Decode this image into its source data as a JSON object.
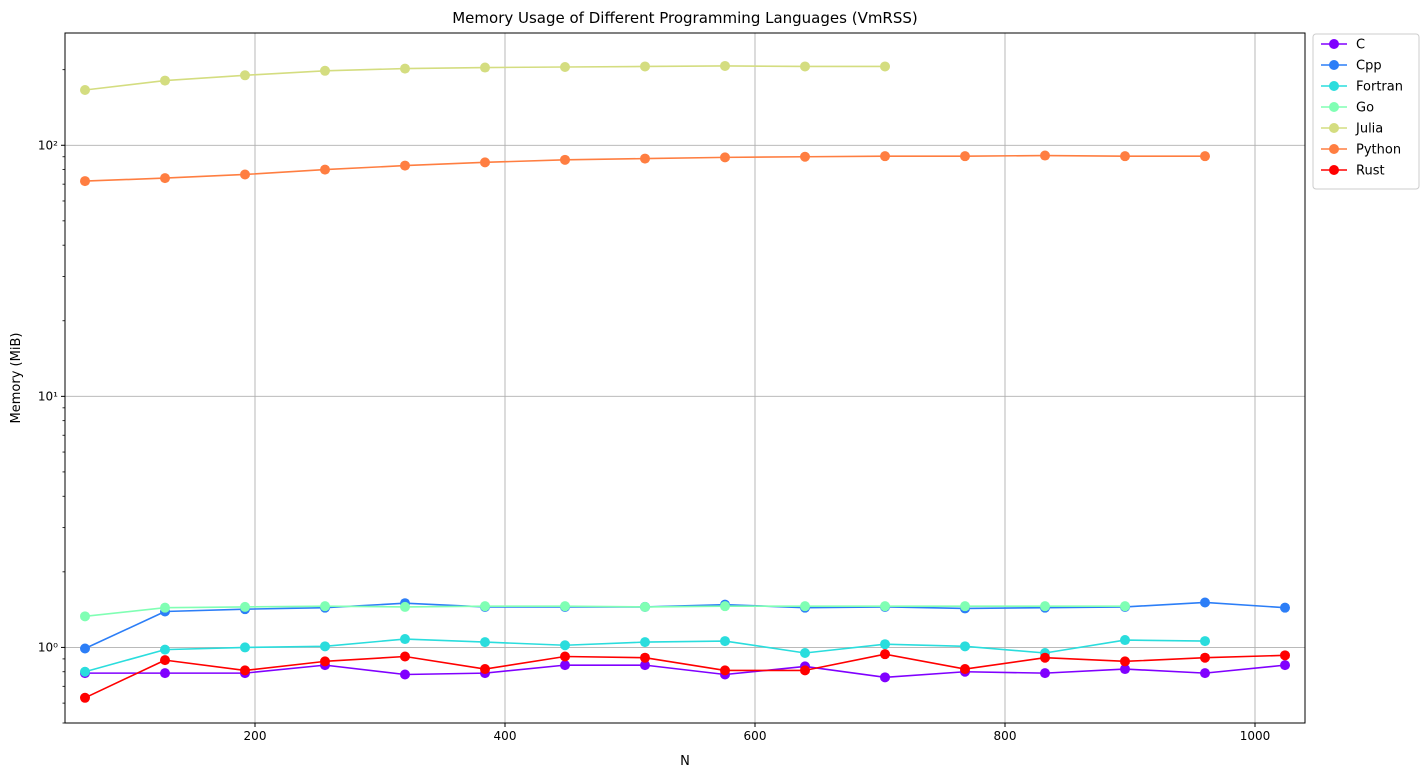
{
  "chart_data": {
    "type": "line",
    "title": "Memory Usage of Different Programming Languages (VmRSS)",
    "xlabel": "N",
    "ylabel": "Memory (MiB)",
    "xlim": [
      48,
      1040
    ],
    "ylim": [
      0.5,
      280
    ],
    "yscale": "log",
    "grid": true,
    "legend_position": "outside-top-right",
    "x_ticks": [
      200,
      400,
      600,
      800,
      1000
    ],
    "y_ticks": [
      {
        "value": 1,
        "label": "10⁰"
      },
      {
        "value": 10,
        "label": "10¹"
      },
      {
        "value": 100,
        "label": "10²"
      }
    ],
    "series": [
      {
        "name": "C",
        "color": "#8000ff",
        "x": [
          64,
          128,
          192,
          256,
          320,
          384,
          448,
          512,
          576,
          640,
          704,
          768,
          832,
          896,
          960,
          1024
        ],
        "y": [
          0.79,
          0.79,
          0.79,
          0.85,
          0.78,
          0.79,
          0.85,
          0.85,
          0.78,
          0.84,
          0.76,
          0.8,
          0.79,
          0.82,
          0.79,
          0.85
        ]
      },
      {
        "name": "Cpp",
        "color": "#2c7ef7",
        "x": [
          64,
          128,
          192,
          256,
          320,
          384,
          448,
          512,
          576,
          640,
          704,
          768,
          832,
          896,
          960,
          1024
        ],
        "y": [
          0.99,
          1.39,
          1.42,
          1.44,
          1.5,
          1.45,
          1.45,
          1.45,
          1.48,
          1.44,
          1.45,
          1.43,
          1.44,
          1.45,
          1.51,
          1.44
        ]
      },
      {
        "name": "Fortran",
        "color": "#2adddd",
        "x": [
          64,
          128,
          192,
          256,
          320,
          384,
          448,
          512,
          576,
          640,
          704,
          768,
          832,
          896,
          960
        ],
        "y": [
          0.8,
          0.98,
          1.0,
          1.01,
          1.08,
          1.05,
          1.02,
          1.05,
          1.06,
          0.95,
          1.03,
          1.01,
          0.95,
          1.07,
          1.06
        ]
      },
      {
        "name": "Go",
        "color": "#80ffb4",
        "x": [
          64,
          128,
          192,
          256,
          320,
          384,
          448,
          512,
          576,
          640,
          704,
          768,
          832,
          896
        ],
        "y": [
          1.33,
          1.44,
          1.45,
          1.46,
          1.45,
          1.46,
          1.46,
          1.45,
          1.46,
          1.46,
          1.46,
          1.46,
          1.46,
          1.46
        ]
      },
      {
        "name": "Julia",
        "color": "#d4dd80",
        "x": [
          64,
          128,
          192,
          256,
          320,
          384,
          448,
          512,
          576,
          640,
          704
        ],
        "y": [
          166,
          181,
          190,
          198,
          202,
          204,
          205,
          206,
          207,
          206,
          206
        ]
      },
      {
        "name": "Python",
        "color": "#ff7e41",
        "x": [
          64,
          128,
          192,
          256,
          320,
          384,
          448,
          512,
          576,
          640,
          704,
          768,
          832,
          896,
          960
        ],
        "y": [
          72,
          74,
          76.5,
          80,
          83,
          85.5,
          87.5,
          88.5,
          89.5,
          90,
          90.5,
          90.5,
          91,
          90.5,
          90.5
        ]
      },
      {
        "name": "Rust",
        "color": "#ff0000",
        "x": [
          64,
          128,
          192,
          256,
          320,
          384,
          448,
          512,
          576,
          640,
          704,
          768,
          832,
          896,
          960,
          1024
        ],
        "y": [
          0.63,
          0.89,
          0.81,
          0.88,
          0.92,
          0.82,
          0.92,
          0.91,
          0.81,
          0.81,
          0.94,
          0.82,
          0.91,
          0.88,
          0.91,
          0.93
        ]
      }
    ]
  }
}
